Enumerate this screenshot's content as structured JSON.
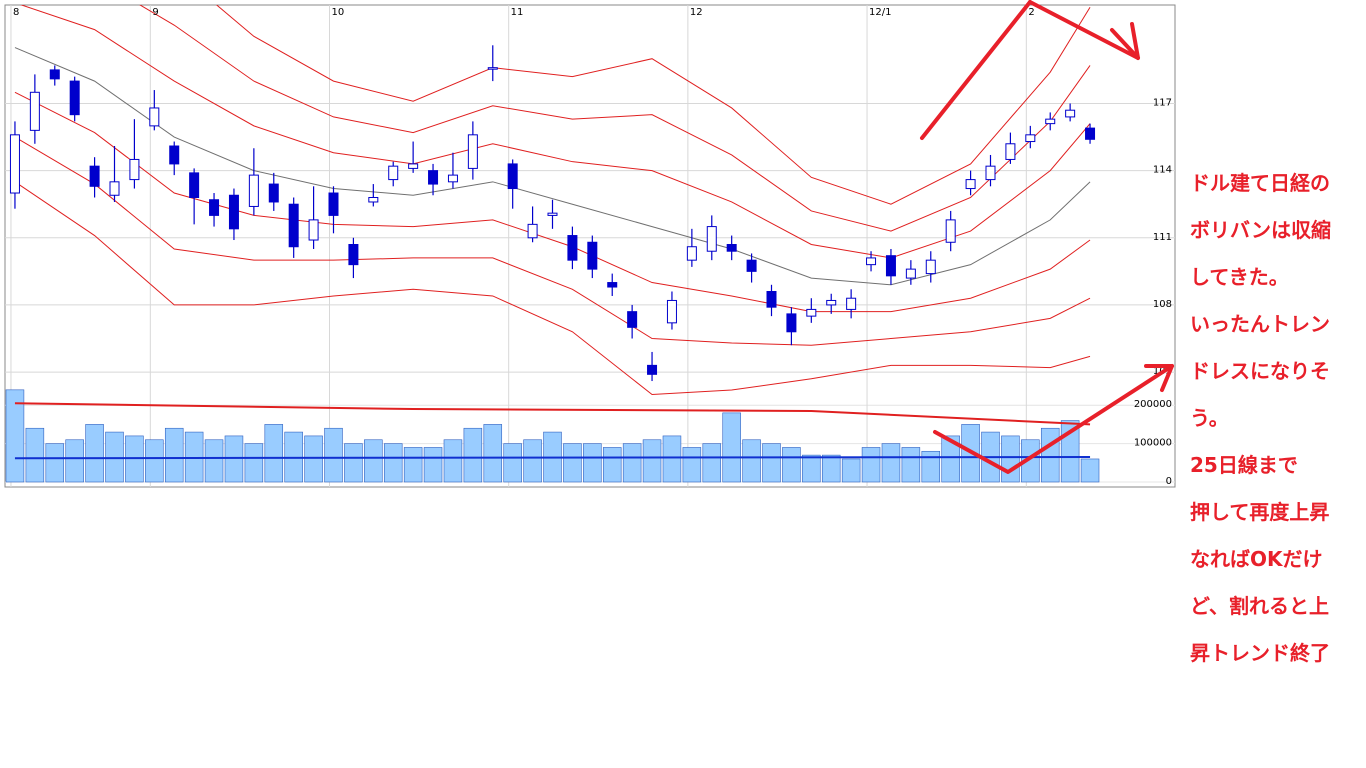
{
  "chart_data": {
    "type": "candlestick",
    "categories": [
      "8",
      null,
      null,
      null,
      null,
      null,
      null,
      "9",
      null,
      null,
      null,
      null,
      null,
      null,
      null,
      null,
      "10",
      null,
      null,
      null,
      null,
      null,
      null,
      null,
      null,
      "11",
      null,
      null,
      null,
      null,
      null,
      null,
      null,
      null,
      "12",
      null,
      null,
      null,
      null,
      null,
      null,
      null,
      null,
      "12/1",
      null,
      null,
      null,
      null,
      null,
      null,
      null,
      "2",
      null,
      null,
      null
    ],
    "open": [
      113.0,
      115.8,
      118.5,
      118.0,
      114.2,
      112.9,
      113.6,
      116.0,
      115.1,
      113.9,
      112.7,
      112.9,
      112.4,
      113.4,
      112.5,
      110.9,
      113.0,
      110.7,
      112.6,
      113.6,
      114.1,
      114.0,
      113.5,
      114.1,
      118.6,
      114.3,
      111.0,
      112.0,
      111.1,
      110.8,
      109.0,
      107.7,
      105.3,
      107.2,
      110.0,
      110.4,
      110.7,
      110.0,
      108.6,
      107.6,
      107.5,
      108.0,
      107.8,
      109.8,
      110.2,
      109.2,
      109.4,
      110.8,
      113.2,
      113.6,
      114.5,
      115.3,
      116.1,
      116.4,
      115.9
    ],
    "high": [
      116.2,
      118.3,
      118.7,
      118.2,
      114.6,
      115.1,
      116.3,
      117.6,
      115.3,
      114.1,
      113.0,
      113.2,
      115.0,
      113.9,
      112.8,
      113.3,
      113.3,
      111.0,
      113.4,
      114.4,
      115.3,
      114.3,
      114.8,
      116.2,
      119.6,
      114.5,
      112.4,
      112.7,
      111.5,
      111.1,
      109.4,
      108.0,
      105.9,
      108.6,
      111.4,
      112.0,
      111.1,
      110.3,
      108.9,
      107.9,
      108.3,
      108.5,
      108.7,
      110.4,
      110.5,
      110.0,
      110.4,
      112.2,
      114.0,
      114.7,
      115.7,
      116.0,
      116.6,
      117.0,
      116.1
    ],
    "low": [
      112.3,
      115.2,
      117.8,
      116.2,
      112.8,
      112.6,
      113.2,
      115.8,
      113.8,
      111.6,
      111.5,
      110.9,
      112.0,
      112.2,
      110.1,
      110.5,
      111.2,
      109.2,
      112.4,
      113.3,
      113.9,
      112.9,
      113.2,
      113.6,
      118.0,
      112.3,
      110.8,
      111.4,
      109.6,
      109.2,
      108.4,
      106.5,
      104.6,
      106.9,
      109.7,
      110.0,
      110.0,
      109.0,
      107.5,
      106.2,
      107.2,
      107.6,
      107.4,
      109.5,
      108.9,
      108.9,
      109.0,
      110.4,
      112.9,
      113.3,
      114.3,
      115.0,
      115.8,
      116.2,
      115.2
    ],
    "close": [
      115.6,
      117.5,
      118.1,
      116.5,
      113.3,
      113.5,
      114.5,
      116.8,
      114.3,
      112.8,
      112.0,
      111.4,
      113.8,
      112.6,
      110.6,
      111.8,
      112.0,
      109.8,
      112.8,
      114.2,
      114.3,
      113.4,
      113.8,
      115.6,
      118.6,
      113.2,
      111.6,
      112.1,
      110.0,
      109.6,
      108.8,
      107.0,
      104.9,
      108.2,
      110.6,
      111.5,
      110.4,
      109.5,
      107.9,
      106.8,
      107.8,
      108.2,
      108.3,
      110.1,
      109.3,
      109.6,
      110.0,
      111.8,
      113.6,
      114.2,
      115.2,
      115.6,
      116.3,
      116.7,
      115.4
    ],
    "up_color": "#ffffff",
    "down_color": "#0000cc",
    "ylim": [
      100,
      121.4
    ],
    "yticks": [
      105,
      108,
      111,
      114,
      117
    ],
    "grid": true,
    "bollinger": {
      "x": [
        0,
        4,
        8,
        12,
        16,
        20,
        24,
        28,
        32,
        36,
        40,
        44,
        48,
        52,
        54
      ],
      "series": [
        {
          "color": "#e02020",
          "values": [
            125.5,
            124.9,
            123.0,
            120.0,
            118.0,
            117.1,
            118.6,
            118.2,
            119.0,
            116.8,
            113.7,
            112.5,
            114.3,
            118.4,
            121.3
          ]
        },
        {
          "color": "#e02020",
          "values": [
            123.5,
            122.6,
            120.5,
            118.0,
            116.4,
            115.7,
            116.9,
            116.3,
            116.5,
            114.7,
            112.2,
            111.3,
            112.8,
            116.2,
            118.7
          ]
        },
        {
          "color": "#e02020",
          "values": [
            121.5,
            120.3,
            118.0,
            116.0,
            114.8,
            114.3,
            115.2,
            114.4,
            114.0,
            112.6,
            110.7,
            110.1,
            111.3,
            114.0,
            116.1
          ]
        },
        {
          "color": "#707070",
          "values": [
            119.5,
            118.0,
            115.5,
            114.0,
            113.2,
            112.9,
            113.5,
            112.5,
            111.5,
            110.5,
            109.2,
            108.9,
            109.8,
            111.8,
            113.5
          ]
        },
        {
          "color": "#e02020",
          "values": [
            117.5,
            115.7,
            113.0,
            112.0,
            111.6,
            111.5,
            111.8,
            110.6,
            109.0,
            108.4,
            107.7,
            107.7,
            108.3,
            109.6,
            110.9
          ]
        },
        {
          "color": "#e02020",
          "values": [
            115.5,
            113.4,
            110.5,
            110.0,
            110.0,
            110.1,
            110.1,
            108.7,
            106.5,
            106.3,
            106.2,
            106.5,
            106.8,
            107.4,
            108.3
          ]
        },
        {
          "color": "#e02020",
          "values": [
            113.5,
            111.1,
            108.0,
            108.0,
            108.4,
            108.7,
            108.4,
            106.8,
            104.0,
            104.2,
            104.7,
            105.3,
            105.3,
            105.2,
            105.7
          ]
        }
      ]
    },
    "volume": {
      "color": "#99ccff",
      "values": [
        240000,
        140000,
        100000,
        110000,
        150000,
        130000,
        120000,
        110000,
        140000,
        130000,
        110000,
        120000,
        100000,
        150000,
        130000,
        120000,
        140000,
        100000,
        110000,
        100000,
        90000,
        90000,
        110000,
        140000,
        150000,
        100000,
        110000,
        130000,
        100000,
        100000,
        90000,
        100000,
        110000,
        120000,
        90000,
        100000,
        180000,
        110000,
        100000,
        90000,
        70000,
        70000,
        60000,
        90000,
        100000,
        90000,
        80000,
        120000,
        150000,
        130000,
        120000,
        110000,
        140000,
        160000,
        60000
      ],
      "ylim": [
        0,
        250000
      ],
      "yticks": [
        0,
        100000,
        200000
      ],
      "lines": [
        {
          "color": "#e02020",
          "x": [
            0,
            20,
            40,
            54
          ],
          "values": [
            205000,
            190000,
            185000,
            150000
          ]
        },
        {
          "color": "#1030d0",
          "x": [
            0,
            54
          ],
          "values": [
            62000,
            65000
          ]
        }
      ]
    },
    "annotations": [
      "ドル建て日経の",
      "ボリバンは収縮",
      "してきた。",
      "いったんトレン",
      "ドレスになりそ",
      "う。",
      "25日線まで",
      "押して再度上昇",
      "なればOKだけ",
      "ど、割れると上",
      "昇トレンド終了"
    ]
  }
}
